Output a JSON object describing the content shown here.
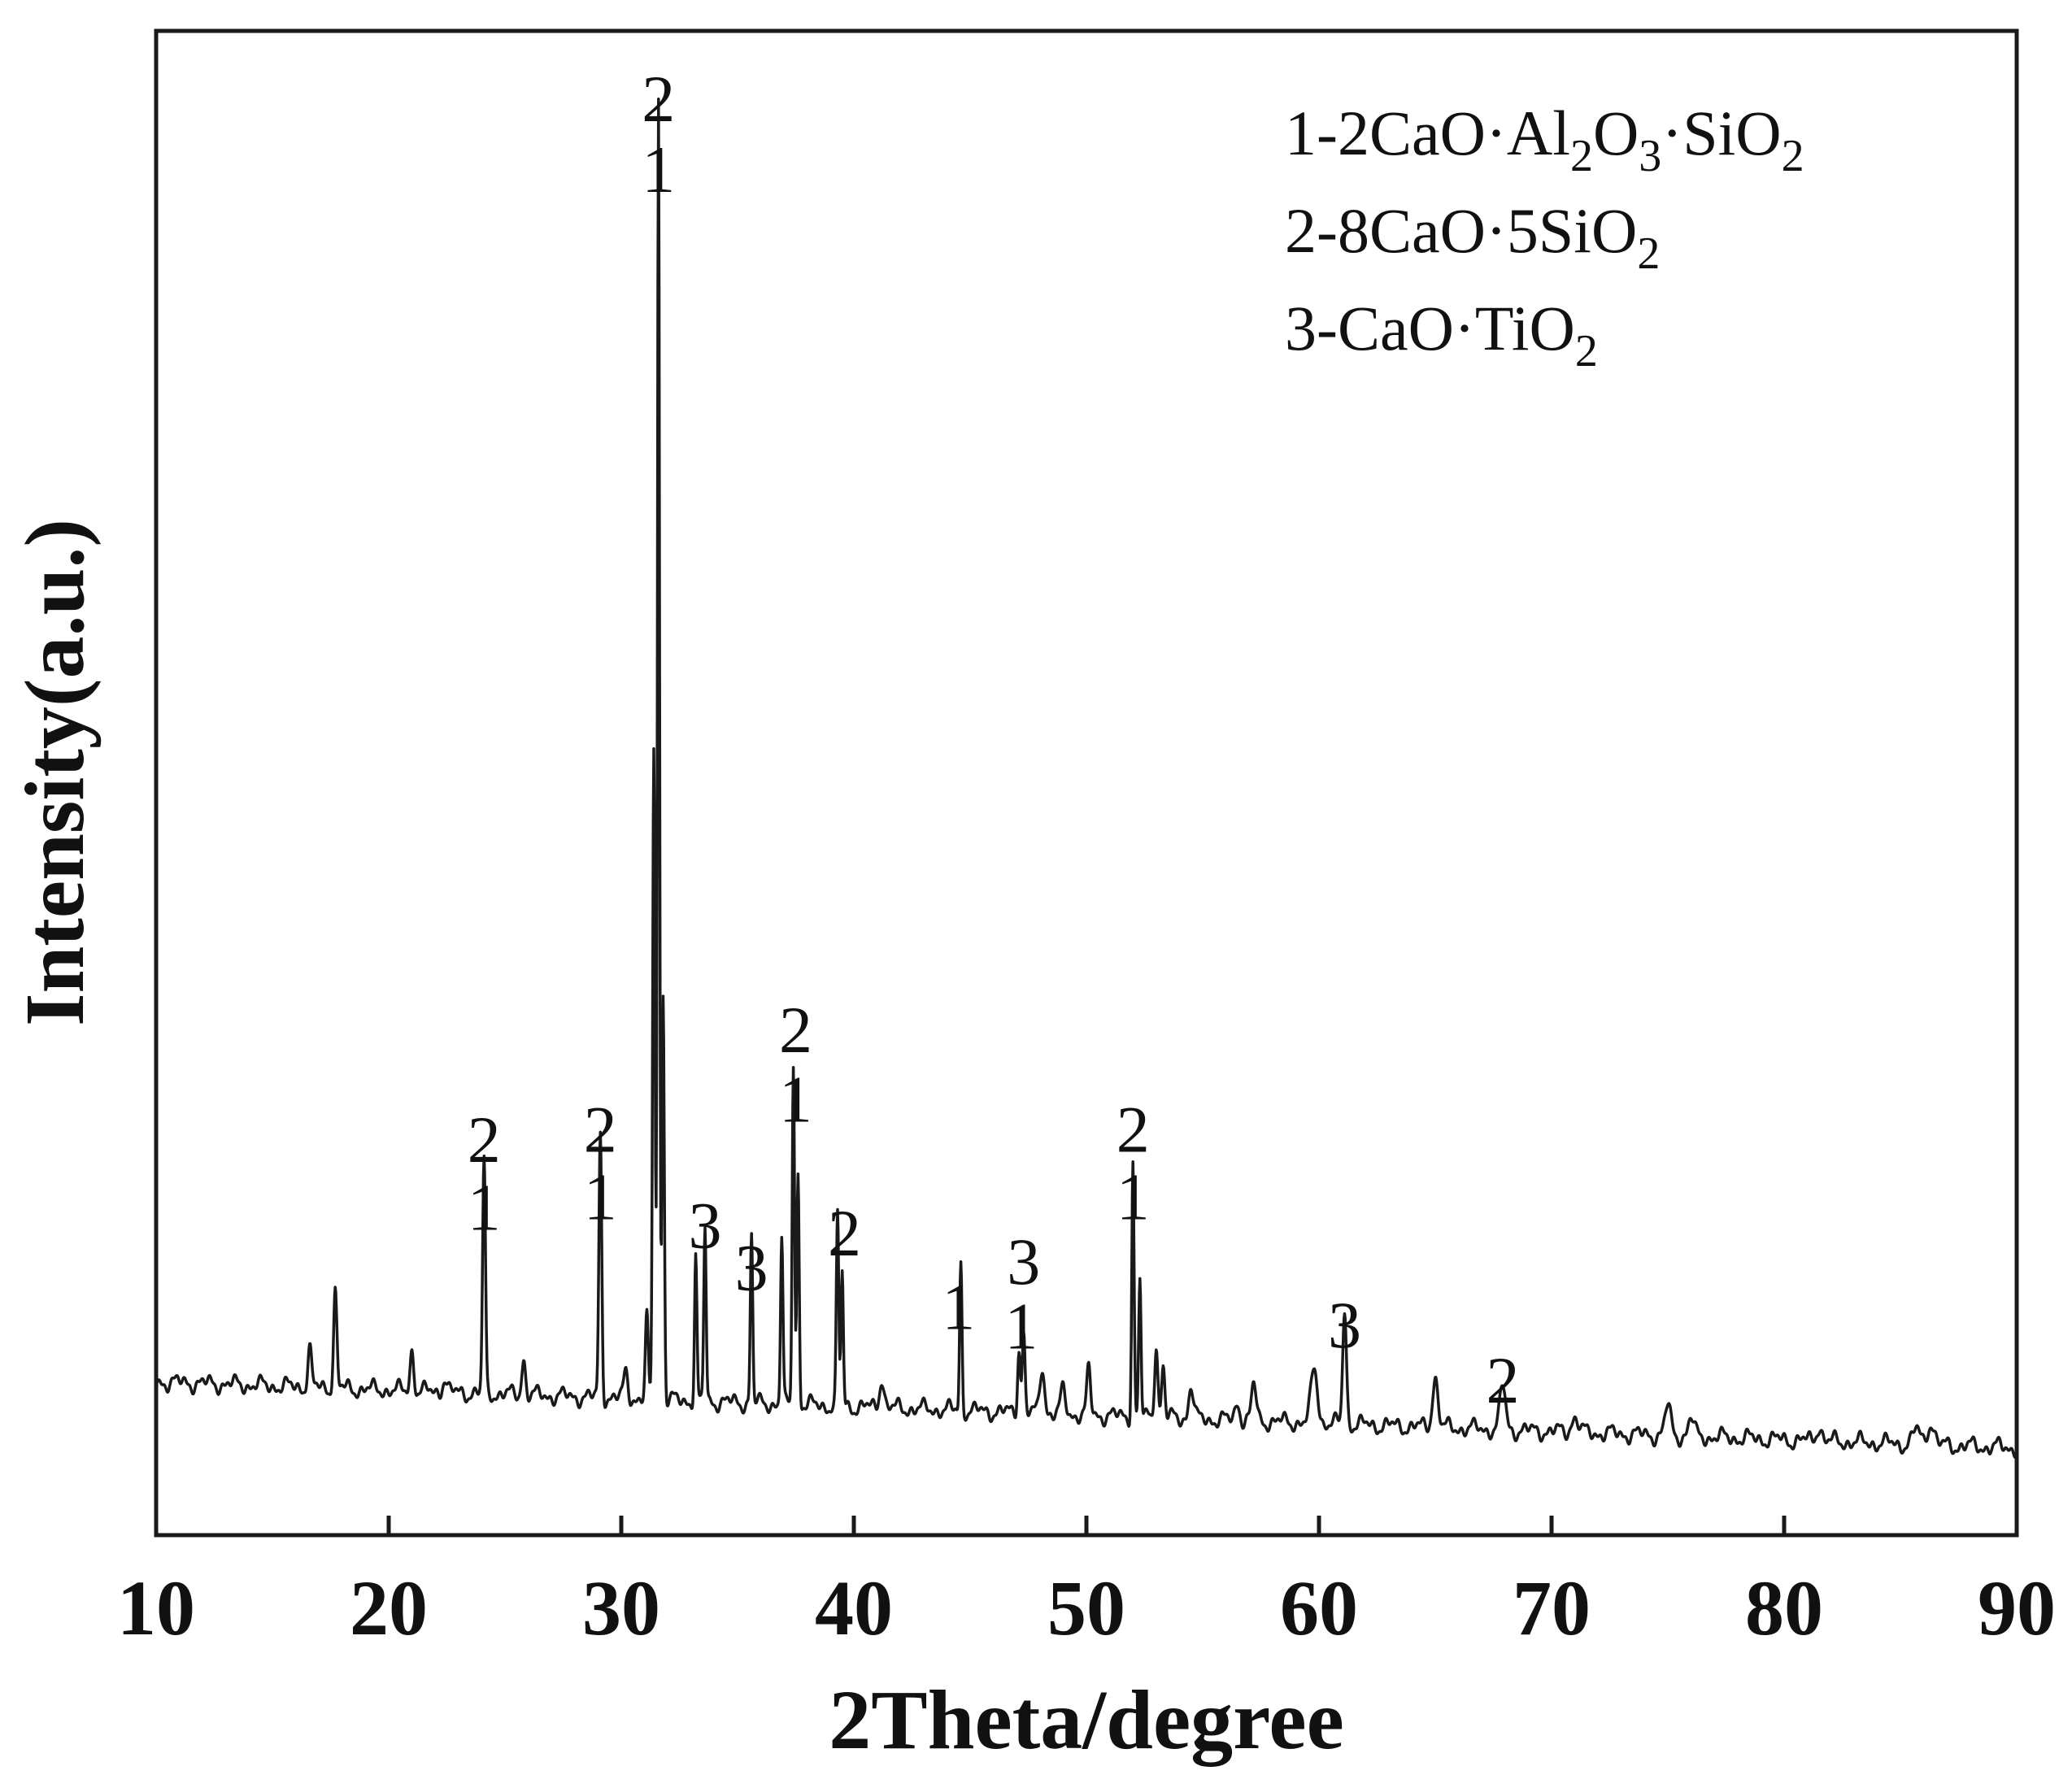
{
  "chart_data": {
    "type": "line",
    "xlabel": "2Theta/degree",
    "ylabel": "Intensity(a.u.)",
    "xlim": [
      10,
      90
    ],
    "ylim": [
      0,
      100
    ],
    "x_ticks": [
      10,
      20,
      30,
      40,
      50,
      60,
      70,
      80,
      90
    ],
    "y_ticks": [],
    "grid": false,
    "legend_position": "top-right",
    "legend": [
      {
        "parts": [
          {
            "t": "1-2CaO·Al"
          },
          {
            "t": "2",
            "sub": true
          },
          {
            "t": "O"
          },
          {
            "t": "3",
            "sub": true
          },
          {
            "t": "·SiO"
          },
          {
            "t": "2",
            "sub": true
          }
        ]
      },
      {
        "parts": [
          {
            "t": "2-8CaO·5SiO"
          },
          {
            "t": "2",
            "sub": true
          }
        ]
      },
      {
        "parts": [
          {
            "t": "3-CaO·TiO"
          },
          {
            "t": "2",
            "sub": true
          }
        ]
      }
    ],
    "baseline": {
      "start": 10.2,
      "end": 5.8
    },
    "peaks": [
      [
        16.6,
        2.6,
        0.08
      ],
      [
        17.7,
        6.5,
        0.07
      ],
      [
        21.0,
        2.7,
        0.08
      ],
      [
        22.4,
        0.9,
        0.1
      ],
      [
        24.1,
        15.5,
        0.06
      ],
      [
        25.8,
        2.4,
        0.08
      ],
      [
        29.1,
        17.5,
        0.06
      ],
      [
        30.2,
        1.8,
        0.09
      ],
      [
        31.1,
        5.4,
        0.06
      ],
      [
        31.4,
        43.5,
        0.05
      ],
      [
        31.6,
        86.5,
        0.045
      ],
      [
        31.8,
        27.0,
        0.05
      ],
      [
        33.2,
        9.6,
        0.05
      ],
      [
        33.6,
        11.6,
        0.05
      ],
      [
        35.6,
        11.2,
        0.05
      ],
      [
        36.9,
        11.1,
        0.05
      ],
      [
        37.4,
        22.8,
        0.05
      ],
      [
        37.6,
        15.3,
        0.05
      ],
      [
        39.3,
        12.7,
        0.05
      ],
      [
        39.5,
        8.8,
        0.05
      ],
      [
        41.2,
        2.0,
        0.1
      ],
      [
        44.6,
        9.8,
        0.05
      ],
      [
        47.1,
        4.3,
        0.06
      ],
      [
        47.3,
        5.3,
        0.06
      ],
      [
        48.1,
        3.1,
        0.1
      ],
      [
        49.0,
        1.6,
        0.1
      ],
      [
        50.1,
        3.0,
        0.08
      ],
      [
        52.0,
        17.0,
        0.05
      ],
      [
        52.3,
        9.0,
        0.05
      ],
      [
        53.0,
        5.0,
        0.07
      ],
      [
        53.3,
        3.4,
        0.07
      ],
      [
        54.5,
        2.2,
        0.1
      ],
      [
        56.5,
        1.2,
        0.1
      ],
      [
        57.2,
        2.4,
        0.1
      ],
      [
        59.8,
        3.6,
        0.14
      ],
      [
        61.1,
        7.6,
        0.08
      ],
      [
        65.0,
        3.3,
        0.12
      ],
      [
        67.9,
        2.9,
        0.12
      ],
      [
        71.0,
        1.0,
        0.15
      ],
      [
        75.0,
        2.0,
        0.12
      ],
      [
        76.0,
        1.2,
        0.12
      ],
      [
        81.5,
        1.0,
        0.12
      ],
      [
        85.7,
        1.0,
        0.15
      ],
      [
        86.3,
        1.5,
        0.15
      ]
    ],
    "annotations": [
      {
        "x": 24.1,
        "y": 20.3,
        "text": "1"
      },
      {
        "x": 24.1,
        "y": 24.8,
        "text": "2"
      },
      {
        "x": 29.1,
        "y": 21.0,
        "text": "1"
      },
      {
        "x": 29.1,
        "y": 25.5,
        "text": "2"
      },
      {
        "x": 31.6,
        "y": 89.3,
        "text": "1"
      },
      {
        "x": 31.6,
        "y": 94.0,
        "text": "2"
      },
      {
        "x": 37.5,
        "y": 27.5,
        "text": "1"
      },
      {
        "x": 37.5,
        "y": 32.1,
        "text": "2"
      },
      {
        "x": 33.6,
        "y": 19.1,
        "text": "3"
      },
      {
        "x": 35.6,
        "y": 16.3,
        "text": "3"
      },
      {
        "x": 39.6,
        "y": 18.6,
        "text": "2"
      },
      {
        "x": 44.5,
        "y": 13.7,
        "text": "1"
      },
      {
        "x": 47.2,
        "y": 12.4,
        "text": "1"
      },
      {
        "x": 47.3,
        "y": 16.7,
        "text": "3"
      },
      {
        "x": 52.0,
        "y": 21.0,
        "text": "1"
      },
      {
        "x": 52.0,
        "y": 25.5,
        "text": "2"
      },
      {
        "x": 61.1,
        "y": 12.5,
        "text": "3"
      },
      {
        "x": 67.9,
        "y": 8.8,
        "text": "2"
      }
    ]
  }
}
